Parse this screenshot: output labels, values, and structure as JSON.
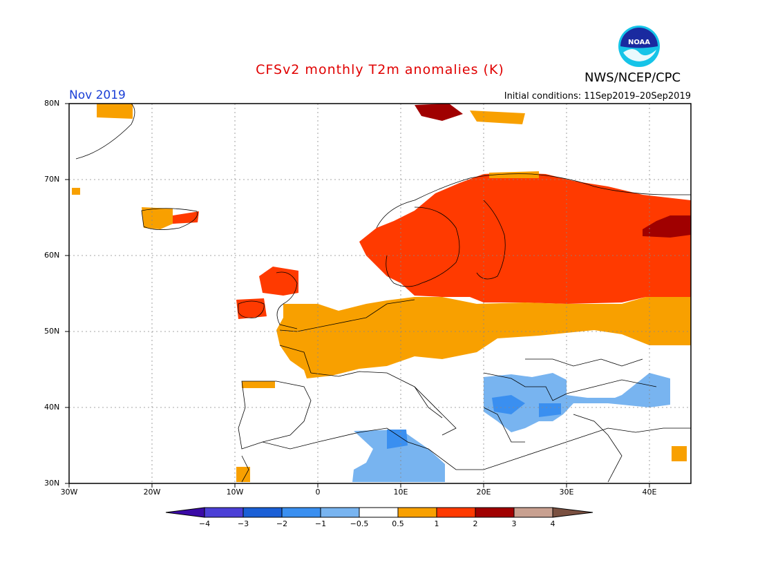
{
  "title": "CFSv2 monthly T2m anomalies (K)",
  "org": "NWS/NCEP/CPC",
  "month": "Nov 2019",
  "initial_conditions": "Initial conditions: 11Sep2019–20Sep2019",
  "logo_text": "NOAA",
  "lat_labels": [
    "80N",
    "70N",
    "60N",
    "50N",
    "40N",
    "30N"
  ],
  "lon_labels": [
    "30W",
    "20W",
    "10W",
    "0",
    "10E",
    "20E",
    "30E",
    "40E"
  ],
  "colorbar": {
    "colors": [
      "#3a0aa6",
      "#4b3fd6",
      "#1a5fd6",
      "#3a8ff0",
      "#78b4f0",
      "#ffffff",
      "#f8a000",
      "#ff3a00",
      "#a00000",
      "#c8a090",
      "#7a5040"
    ],
    "labels": [
      "−4",
      "−3",
      "−2",
      "−1",
      "−0.5",
      "0.5",
      "1",
      "2",
      "3",
      "4"
    ]
  },
  "map_colors": {
    "plus05": "#f8a000",
    "plus1": "#ff3a00",
    "plus2": "#a00000",
    "minus05": "#78b4f0",
    "minus1": "#3a8ff0"
  }
}
